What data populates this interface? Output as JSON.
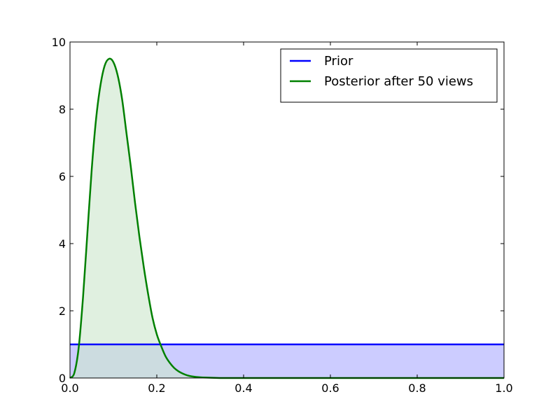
{
  "chart_data": {
    "type": "area",
    "title": "",
    "xlabel": "",
    "ylabel": "",
    "xlim": [
      0.0,
      1.0
    ],
    "ylim": [
      0,
      10
    ],
    "grid": false,
    "legend_position": "top-right",
    "x_ticks": [
      0.0,
      0.2,
      0.4,
      0.6,
      0.8,
      1.0
    ],
    "x_tick_labels": [
      "0.0",
      "0.2",
      "0.4",
      "0.6",
      "0.8",
      "1.0"
    ],
    "y_ticks": [
      0,
      2,
      4,
      6,
      8,
      10
    ],
    "y_tick_labels": [
      "0",
      "2",
      "4",
      "6",
      "8",
      "10"
    ],
    "series": [
      {
        "name": "Prior",
        "color": "#0000ff",
        "fill_color": "#ccccff",
        "x": [
          0.0,
          1.0
        ],
        "y": [
          1.0,
          1.0
        ]
      },
      {
        "name": "Posterior after 50 views",
        "color": "#008000",
        "fill_color": "#cce6cc",
        "x": [
          0.0,
          0.01,
          0.02,
          0.03,
          0.04,
          0.05,
          0.06,
          0.07,
          0.08,
          0.09,
          0.1,
          0.11,
          0.12,
          0.13,
          0.14,
          0.15,
          0.16,
          0.17,
          0.18,
          0.19,
          0.2,
          0.21,
          0.22,
          0.23,
          0.24,
          0.25,
          0.26,
          0.27,
          0.28,
          0.3,
          0.32,
          0.35,
          0.4,
          0.5,
          0.6,
          0.8,
          1.0
        ],
        "y": [
          0.0,
          0.15,
          0.9,
          2.4,
          4.3,
          6.2,
          7.7,
          8.7,
          9.3,
          9.5,
          9.4,
          9.0,
          8.3,
          7.3,
          6.3,
          5.2,
          4.2,
          3.3,
          2.5,
          1.8,
          1.3,
          0.95,
          0.65,
          0.45,
          0.3,
          0.2,
          0.13,
          0.08,
          0.05,
          0.02,
          0.01,
          0.0,
          0.0,
          0.0,
          0.0,
          0.0,
          0.0
        ]
      }
    ]
  }
}
